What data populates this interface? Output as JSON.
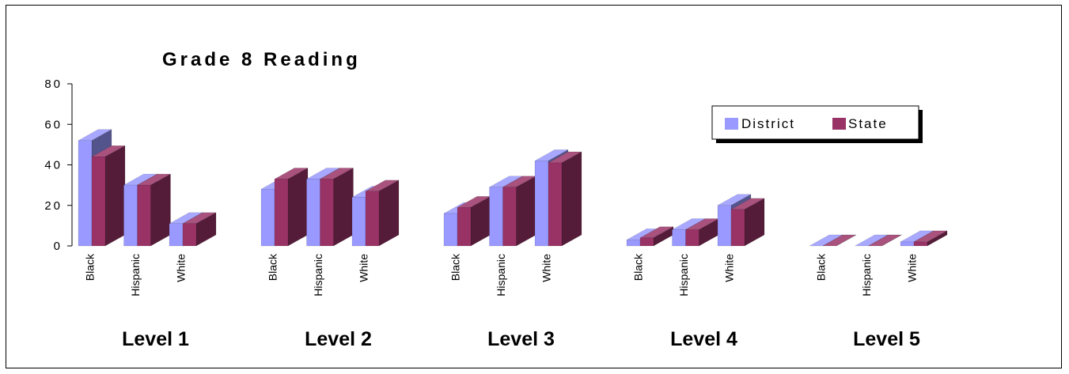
{
  "chart_data": {
    "type": "bar",
    "style": "3d-clustered",
    "title": "Grade 8 Reading",
    "xlabel": "",
    "ylabel": "",
    "ylim": [
      0,
      80
    ],
    "yticks": [
      0,
      20,
      40,
      60,
      80
    ],
    "grid": false,
    "legend_position": "right",
    "groups": [
      {
        "label": "Level 1",
        "categories": [
          "Black",
          "Hispanic",
          "White"
        ]
      },
      {
        "label": "Level 2",
        "categories": [
          "Black",
          "Hispanic",
          "White"
        ]
      },
      {
        "label": "Level 3",
        "categories": [
          "Black",
          "Hispanic",
          "White"
        ]
      },
      {
        "label": "Level 4",
        "categories": [
          "Black",
          "Hispanic",
          "White"
        ]
      },
      {
        "label": "Level 5",
        "categories": [
          "Black",
          "Hispanic",
          "White"
        ]
      }
    ],
    "series": [
      {
        "name": "District",
        "color": "#9999ff",
        "values": [
          52,
          30,
          11,
          28,
          33,
          24,
          16,
          29,
          42,
          3,
          8,
          20,
          0,
          0,
          2
        ]
      },
      {
        "name": "State",
        "color": "#993366",
        "values": [
          44,
          30,
          11,
          33,
          33,
          27,
          19,
          29,
          41,
          4,
          8,
          18,
          0,
          0,
          2
        ]
      }
    ]
  }
}
